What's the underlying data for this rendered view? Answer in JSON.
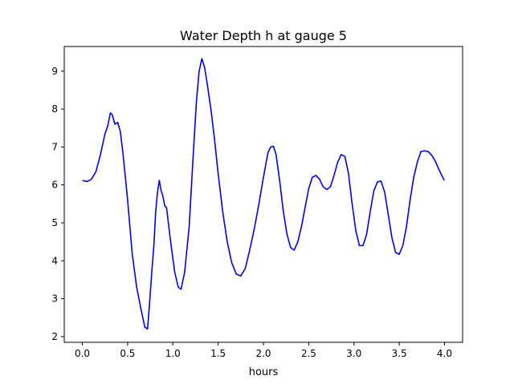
{
  "chart_data": {
    "type": "line",
    "title": "Water Depth h at gauge 5",
    "xlabel": "hours",
    "ylabel": "",
    "xlim": [
      -0.2,
      4.2
    ],
    "ylim": [
      1.85,
      9.65
    ],
    "xticks": [
      0.0,
      0.5,
      1.0,
      1.5,
      2.0,
      2.5,
      3.0,
      3.5,
      4.0
    ],
    "xtick_labels": [
      "0.0",
      "0.5",
      "1.0",
      "1.5",
      "2.0",
      "2.5",
      "3.0",
      "3.5",
      "4.0"
    ],
    "yticks": [
      2,
      3,
      4,
      5,
      6,
      7,
      8,
      9
    ],
    "ytick_labels": [
      "2",
      "3",
      "4",
      "5",
      "6",
      "7",
      "8",
      "9"
    ],
    "grid": false,
    "legend": "none",
    "series": [
      {
        "color": "#0000ff",
        "points": [
          [
            0.0,
            6.12
          ],
          [
            0.05,
            6.09
          ],
          [
            0.1,
            6.15
          ],
          [
            0.15,
            6.35
          ],
          [
            0.2,
            6.8
          ],
          [
            0.25,
            7.35
          ],
          [
            0.28,
            7.55
          ],
          [
            0.31,
            7.9
          ],
          [
            0.33,
            7.85
          ],
          [
            0.36,
            7.6
          ],
          [
            0.39,
            7.65
          ],
          [
            0.42,
            7.4
          ],
          [
            0.45,
            6.8
          ],
          [
            0.5,
            5.6
          ],
          [
            0.55,
            4.2
          ],
          [
            0.6,
            3.3
          ],
          [
            0.65,
            2.7
          ],
          [
            0.69,
            2.25
          ],
          [
            0.72,
            2.2
          ],
          [
            0.74,
            2.8
          ],
          [
            0.77,
            3.8
          ],
          [
            0.79,
            4.4
          ],
          [
            0.81,
            5.3
          ],
          [
            0.83,
            5.8
          ],
          [
            0.85,
            6.12
          ],
          [
            0.87,
            5.85
          ],
          [
            0.89,
            5.7
          ],
          [
            0.91,
            5.45
          ],
          [
            0.93,
            5.4
          ],
          [
            0.97,
            4.6
          ],
          [
            1.02,
            3.7
          ],
          [
            1.06,
            3.3
          ],
          [
            1.09,
            3.25
          ],
          [
            1.13,
            3.7
          ],
          [
            1.18,
            4.9
          ],
          [
            1.22,
            6.6
          ],
          [
            1.26,
            8.2
          ],
          [
            1.29,
            9.0
          ],
          [
            1.32,
            9.33
          ],
          [
            1.35,
            9.1
          ],
          [
            1.38,
            8.65
          ],
          [
            1.42,
            8.0
          ],
          [
            1.46,
            7.2
          ],
          [
            1.5,
            6.3
          ],
          [
            1.55,
            5.3
          ],
          [
            1.6,
            4.5
          ],
          [
            1.65,
            3.95
          ],
          [
            1.7,
            3.65
          ],
          [
            1.75,
            3.6
          ],
          [
            1.8,
            3.8
          ],
          [
            1.85,
            4.3
          ],
          [
            1.9,
            4.85
          ],
          [
            1.95,
            5.5
          ],
          [
            2.0,
            6.2
          ],
          [
            2.05,
            6.85
          ],
          [
            2.08,
            7.0
          ],
          [
            2.11,
            7.02
          ],
          [
            2.14,
            6.8
          ],
          [
            2.18,
            6.1
          ],
          [
            2.22,
            5.3
          ],
          [
            2.26,
            4.7
          ],
          [
            2.3,
            4.35
          ],
          [
            2.34,
            4.28
          ],
          [
            2.38,
            4.5
          ],
          [
            2.42,
            4.9
          ],
          [
            2.46,
            5.4
          ],
          [
            2.5,
            5.9
          ],
          [
            2.54,
            6.2
          ],
          [
            2.58,
            6.25
          ],
          [
            2.62,
            6.15
          ],
          [
            2.66,
            5.95
          ],
          [
            2.7,
            5.88
          ],
          [
            2.74,
            5.95
          ],
          [
            2.78,
            6.25
          ],
          [
            2.82,
            6.6
          ],
          [
            2.86,
            6.8
          ],
          [
            2.9,
            6.75
          ],
          [
            2.94,
            6.3
          ],
          [
            2.98,
            5.5
          ],
          [
            3.02,
            4.8
          ],
          [
            3.06,
            4.4
          ],
          [
            3.1,
            4.4
          ],
          [
            3.14,
            4.7
          ],
          [
            3.18,
            5.3
          ],
          [
            3.22,
            5.85
          ],
          [
            3.26,
            6.08
          ],
          [
            3.3,
            6.1
          ],
          [
            3.34,
            5.8
          ],
          [
            3.38,
            5.2
          ],
          [
            3.42,
            4.6
          ],
          [
            3.46,
            4.22
          ],
          [
            3.5,
            4.17
          ],
          [
            3.54,
            4.4
          ],
          [
            3.58,
            4.9
          ],
          [
            3.62,
            5.6
          ],
          [
            3.66,
            6.2
          ],
          [
            3.7,
            6.6
          ],
          [
            3.74,
            6.88
          ],
          [
            3.78,
            6.9
          ],
          [
            3.82,
            6.88
          ],
          [
            3.86,
            6.78
          ],
          [
            3.9,
            6.62
          ],
          [
            3.94,
            6.4
          ],
          [
            3.98,
            6.2
          ],
          [
            4.0,
            6.12
          ]
        ]
      }
    ]
  }
}
